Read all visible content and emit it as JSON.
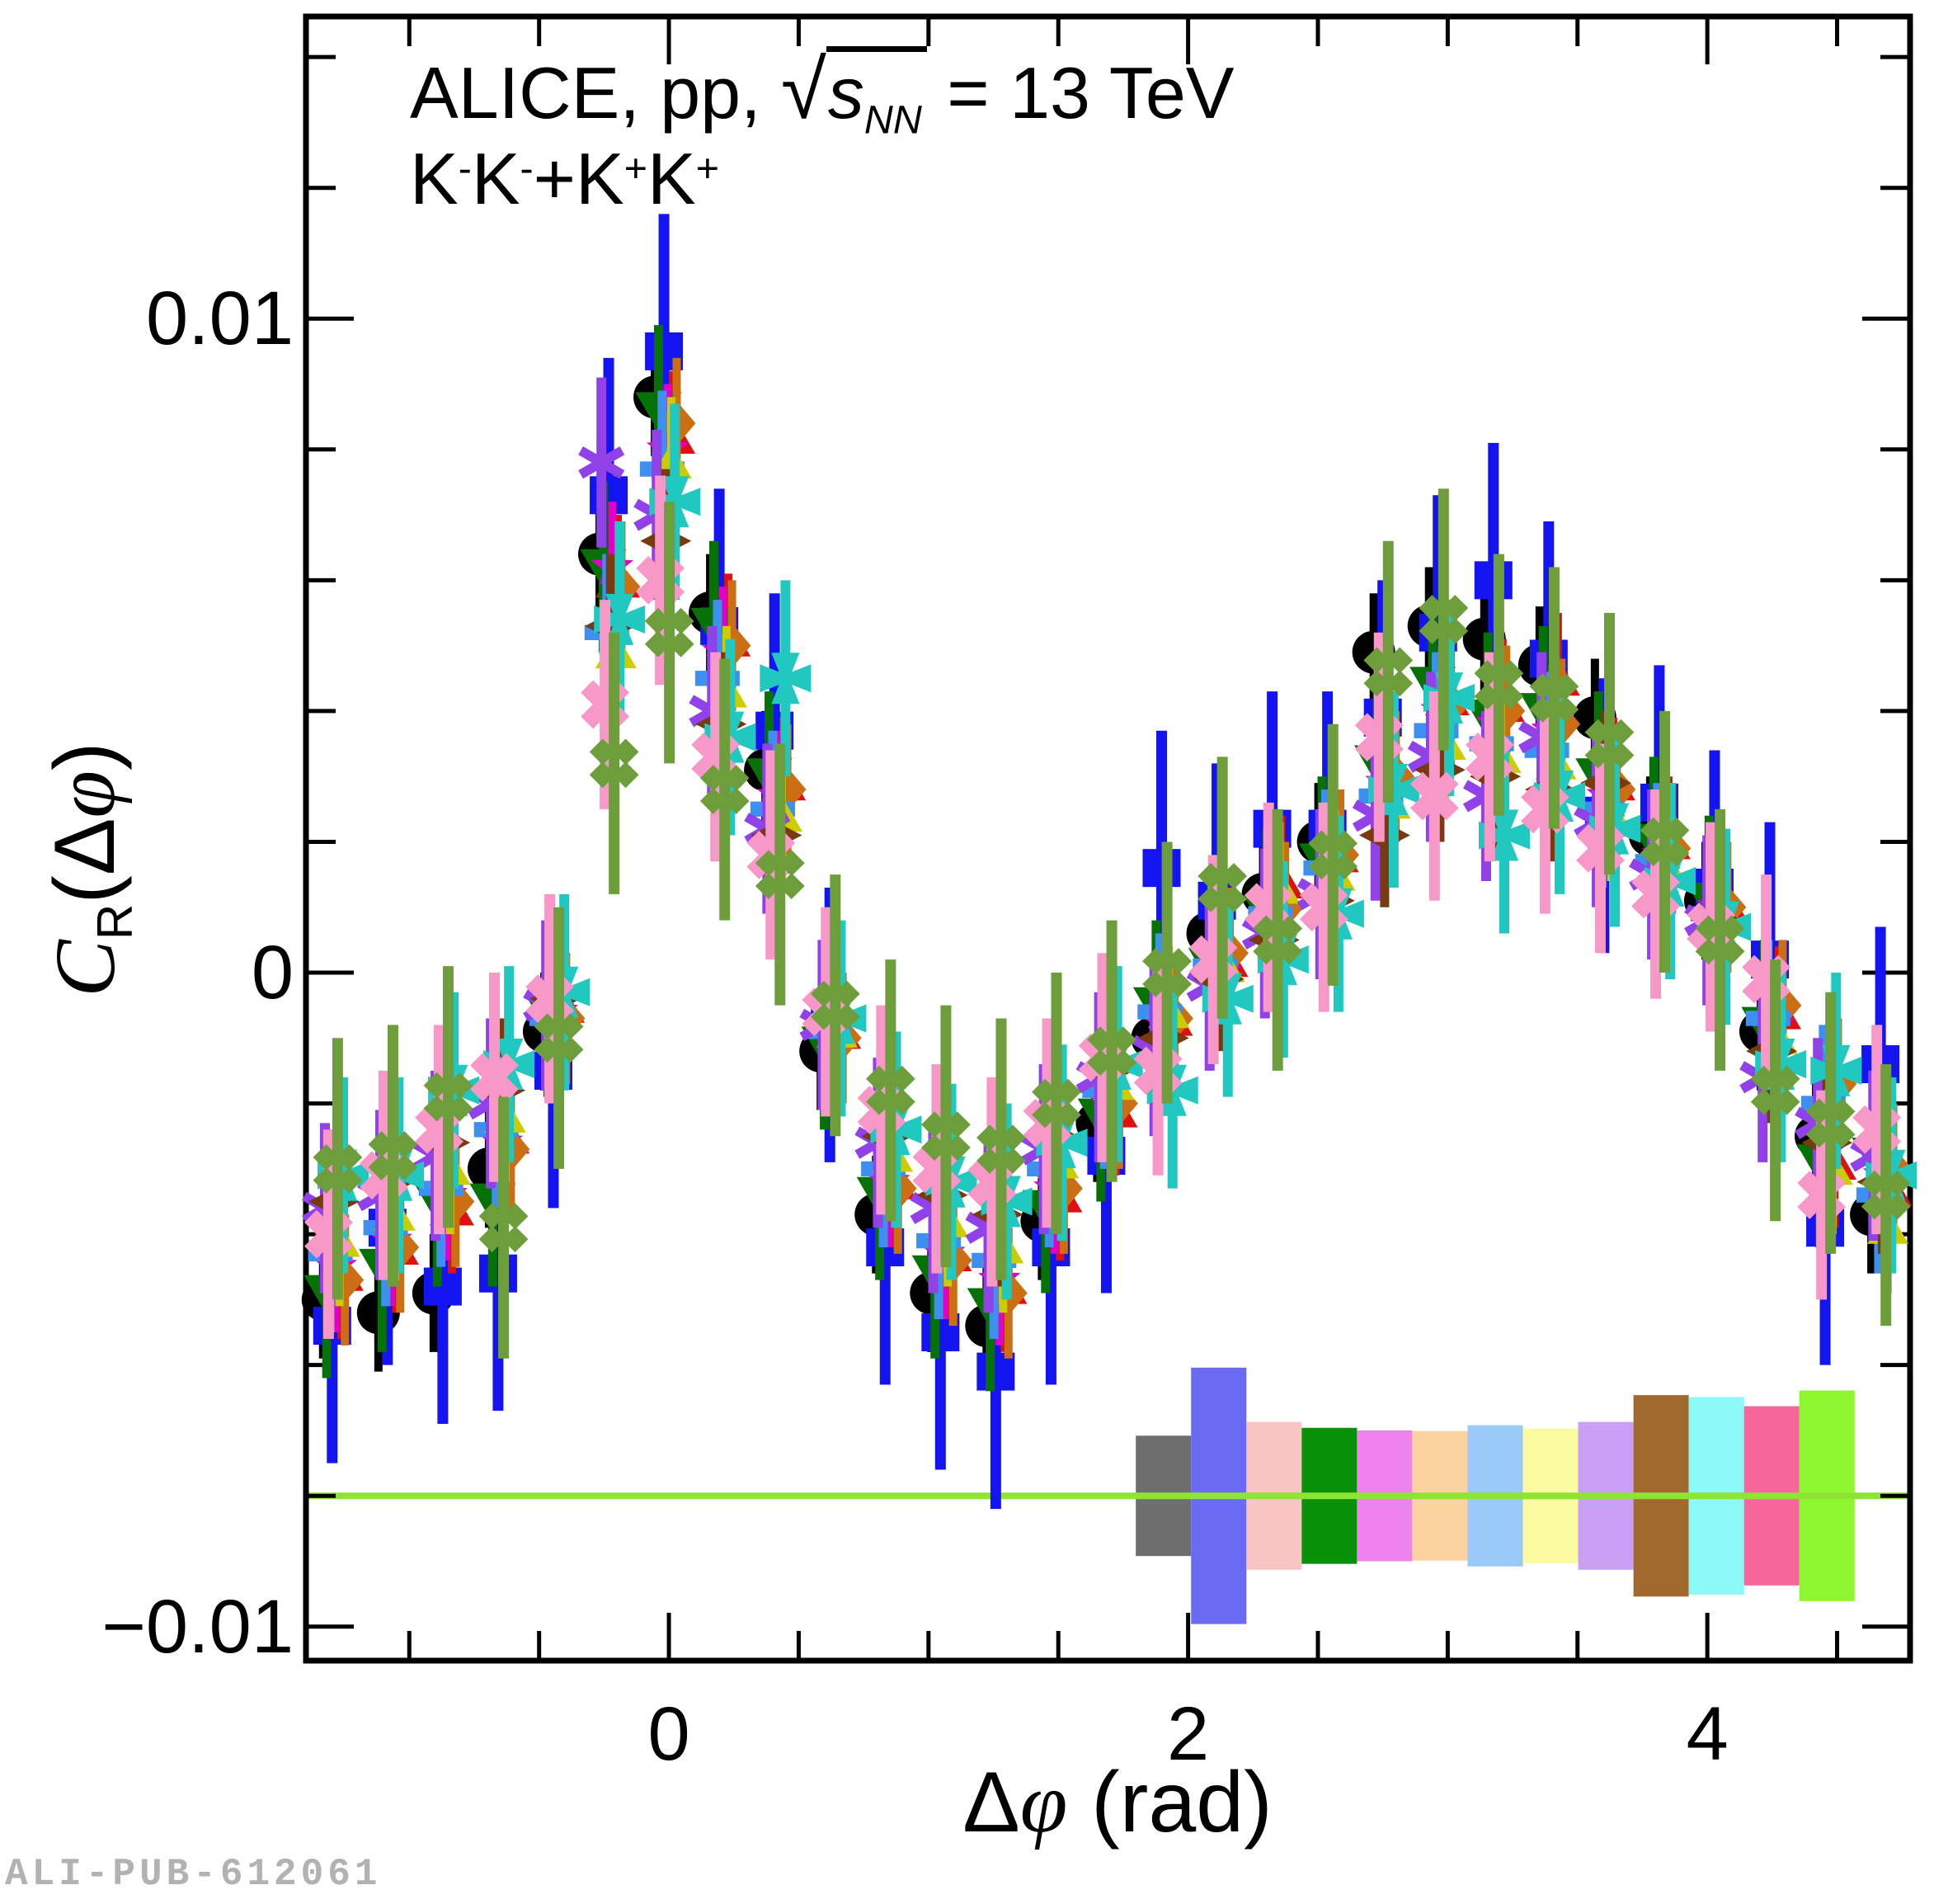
{
  "header": {
    "line1_prefix": "ALICE, pp, ",
    "sqrt_symbol": "√",
    "radicand": "s",
    "radicand_sub": "NN",
    "line1_suffix": " = 13 TeV",
    "system": [
      {
        "t": "K",
        "s": "-"
      },
      {
        "t": "K",
        "s": "-"
      },
      {
        "t": "+"
      },
      {
        "t": "K",
        "s": "+"
      },
      {
        "t": "K",
        "s": "+"
      }
    ]
  },
  "watermark": "ALI-PUB-612061",
  "axes": {
    "x_title_delta": "Δ",
    "x_title_phi": "φ",
    "x_title_suffix": " (rad)",
    "y_title_c": "C",
    "y_title_sub": "R",
    "y_title_open": "(Δ",
    "y_title_phi": "φ",
    "y_title_close": ")"
  },
  "chart_data": {
    "type": "scatter",
    "title": "ALICE, pp, sqrt(s_NN) = 13 TeV ; K-K- + K+K+",
    "xlabel": "Δφ (rad)",
    "ylabel": "C_R(Δφ)",
    "xlim": [
      -1.398,
      4.781
    ],
    "ylim": [
      -0.01052,
      0.01462
    ],
    "grid": false,
    "legend": "none (13 unlabeled kaon-pair series distinguished by marker color; systematic-uncertainty boxes drawn near y = -0.008)",
    "x_ticks": [
      {
        "v": 0,
        "label": "0"
      },
      {
        "v": 2,
        "label": "2"
      },
      {
        "v": 4,
        "label": "4"
      }
    ],
    "x_minor_step": 0.5,
    "y_ticks": [
      {
        "v": 0.01,
        "label": "0.01"
      },
      {
        "v": 0,
        "label": "0"
      },
      {
        "v": -0.01,
        "label": "−0.01"
      }
    ],
    "y_minor_step": 0.002,
    "baseline": {
      "y": -0.008,
      "color": "#8de433"
    },
    "x": [
      -1.29,
      -1.077,
      -0.864,
      -0.651,
      -0.438,
      -0.225,
      -0.012,
      0.201,
      0.414,
      0.627,
      0.84,
      1.053,
      1.266,
      1.479,
      1.692,
      1.905,
      2.118,
      2.331,
      2.544,
      2.757,
      2.97,
      3.183,
      3.396,
      3.609,
      3.822,
      4.035,
      4.248,
      4.461,
      4.674
    ],
    "series": [
      {
        "name": "black-circles",
        "marker": "circle",
        "color": "#000000",
        "size": 26,
        "line_width": 10,
        "err": 0.0009,
        "x_offset": -0.042,
        "y": [
          -0.005,
          -0.0052,
          -0.0049,
          -0.003,
          -0.0009,
          0.0064,
          0.0088,
          0.0055,
          0.0031,
          -0.0012,
          -0.0037,
          -0.0049,
          -0.0054,
          -0.0038,
          -0.0023,
          -0.001,
          0.0006,
          0.0012,
          0.002,
          0.0049,
          0.0053,
          0.0051,
          0.0047,
          0.0039,
          0.0021,
          0.0011,
          -0.0009,
          -0.0025,
          -0.0037
        ],
        "sys_box": {
          "x": 1.905,
          "half_width": 0.1065,
          "half_height": 0.00092,
          "color": "#6e6e6e"
        }
      },
      {
        "name": "blue-squares",
        "marker": "square",
        "color": "#1414f0",
        "size": 23,
        "line_width": 13,
        "err": 0.0021,
        "x_offset": -0.007,
        "y": [
          -0.0054,
          -0.0039,
          -0.0048,
          -0.0046,
          -0.0015,
          0.0073,
          0.0095,
          0.0053,
          0.0037,
          -0.0008,
          -0.0042,
          -0.0055,
          -0.0061,
          -0.0042,
          -0.0028,
          0.0016,
          0.0011,
          0.0022,
          0.0022,
          0.0039,
          0.0052,
          0.006,
          0.0048,
          0.0024,
          0.0026,
          0.0013,
          0.0002,
          -0.0039,
          -0.0014
        ],
        "sys_box": {
          "x": 2.118,
          "half_width": 0.1065,
          "half_height": 0.00196,
          "color": "#6a6af2"
        }
      },
      {
        "name": "red-triangles-up",
        "marker": "triangle-up",
        "color": "#e01010",
        "size": 27,
        "line_width": 10,
        "err": 0.001,
        "x_offset": 0.028,
        "y": [
          -0.0046,
          -0.0042,
          -0.0036,
          -0.0025,
          -0.0005,
          0.006,
          0.0082,
          0.0051,
          0.0029,
          -0.0009,
          -0.0032,
          -0.0043,
          -0.0048,
          -0.0034,
          -0.0021,
          -0.0007,
          0.0002,
          0.0014,
          0.0018,
          0.0031,
          0.0042,
          0.0041,
          0.0045,
          0.0029,
          0.002,
          0.0011,
          -0.0006,
          -0.0029,
          -0.0033
        ],
        "sys_box": {
          "x": 2.331,
          "half_width": 0.1065,
          "half_height": 0.00113,
          "color": "#f8c4c4"
        }
      },
      {
        "name": "darkgreen-triangles-down",
        "marker": "triangle-down",
        "color": "#067106",
        "size": 28,
        "line_width": 11,
        "err": 0.0013,
        "x_offset": -0.028,
        "y": [
          -0.0049,
          -0.0045,
          -0.0035,
          -0.0035,
          -0.0006,
          0.0062,
          0.0086,
          0.0053,
          0.003,
          -0.0011,
          -0.0034,
          -0.0046,
          -0.0051,
          -0.0036,
          -0.0022,
          -0.0005,
          0.0001,
          0.0009,
          0.0017,
          0.0032,
          0.0044,
          0.0039,
          0.004,
          0.003,
          0.002,
          0.0011,
          -0.0008,
          -0.0029,
          -0.0028
        ],
        "sys_box": {
          "x": 2.544,
          "half_width": 0.1065,
          "half_height": 0.00104,
          "color": "#089008"
        }
      },
      {
        "name": "magenta-stars",
        "marker": "star5",
        "color": "#e000c8",
        "size": 27,
        "line_width": 10,
        "err": 0.001,
        "x_offset": 0.007,
        "y": [
          -0.0045,
          -0.0041,
          -0.0034,
          -0.0026,
          -0.0006,
          0.0062,
          0.008,
          0.0049,
          0.0027,
          -0.001,
          -0.0032,
          -0.0043,
          -0.0047,
          -0.0033,
          -0.002,
          -0.0008,
          0.0,
          0.0008,
          0.0016,
          0.0029,
          0.004,
          0.0038,
          0.0037,
          0.0027,
          0.0018,
          0.001,
          -0.0008,
          -0.0027,
          -0.0031
        ],
        "sys_box": {
          "x": 2.757,
          "half_width": 0.1065,
          "half_height": 0.001,
          "color": "#ee82ee"
        }
      },
      {
        "name": "orange-diamonds",
        "marker": "diamond",
        "color": "#cc6e14",
        "size": 27,
        "line_width": 10,
        "err": 0.001,
        "x_offset": 0.042,
        "y": [
          -0.0047,
          -0.0042,
          -0.0035,
          -0.0027,
          -0.0007,
          0.0059,
          0.0084,
          0.005,
          0.0028,
          -0.001,
          -0.0033,
          -0.0044,
          -0.0049,
          -0.0033,
          -0.002,
          -0.0007,
          0.0003,
          0.001,
          0.0018,
          0.003,
          0.0041,
          0.004,
          0.0038,
          0.0028,
          0.0019,
          0.001,
          -0.0005,
          -0.0017,
          -0.003
        ],
        "sys_box": {
          "x": 2.97,
          "half_width": 0.1065,
          "half_height": 0.00099,
          "color": "#fbd2a0"
        }
      },
      {
        "name": "dodgerblue-crosses",
        "marker": "plus",
        "color": "#3d8ff0",
        "size": 27,
        "line_width": 11,
        "err": 0.0012,
        "x_offset": -0.014,
        "y": [
          -0.0043,
          -0.0039,
          -0.0033,
          -0.0024,
          -0.0007,
          0.0052,
          0.0077,
          0.0045,
          0.0025,
          -0.0009,
          -0.003,
          -0.0041,
          -0.0044,
          -0.003,
          -0.0018,
          -0.0006,
          0.0001,
          0.0009,
          0.0016,
          0.0027,
          0.0037,
          0.0035,
          0.0034,
          0.0025,
          0.0017,
          0.0009,
          -0.0007,
          -0.002,
          -0.0034
        ],
        "sys_box": {
          "x": 3.183,
          "half_width": 0.1065,
          "half_height": 0.00108,
          "color": "#9ccaf8"
        }
      },
      {
        "name": "yellow-triangles",
        "marker": "triangle-up",
        "color": "#cccc00",
        "size": 25,
        "line_width": 10,
        "err": 0.001,
        "x_offset": 0.021,
        "y": [
          -0.0041,
          -0.0037,
          -0.003,
          -0.0022,
          -0.0006,
          0.0049,
          0.0078,
          0.0043,
          0.0024,
          -0.0009,
          -0.0028,
          -0.0038,
          -0.0042,
          -0.0029,
          -0.0017,
          -0.0006,
          0.0001,
          0.0013,
          0.0015,
          0.0026,
          0.0035,
          0.0033,
          0.0032,
          0.0024,
          0.0016,
          0.0009,
          -0.001,
          -0.003,
          -0.0039
        ],
        "sys_box": {
          "x": 3.396,
          "half_width": 0.1065,
          "half_height": 0.00103,
          "color": "#fafaa0"
        }
      },
      {
        "name": "purple-asterisks",
        "marker": "asterisk",
        "color": "#9141e8",
        "size": 29,
        "line_width": 12,
        "err": 0.0013,
        "x_offset": -0.035,
        "y": [
          -0.0036,
          -0.0034,
          -0.0028,
          -0.002,
          -0.0005,
          0.0078,
          0.007,
          0.004,
          0.0022,
          -0.0008,
          -0.0026,
          -0.0036,
          -0.0039,
          -0.0027,
          -0.0016,
          -0.0012,
          -0.0002,
          0.0006,
          0.0012,
          0.0024,
          0.0033,
          0.0027,
          0.0036,
          0.0023,
          0.0015,
          0.0008,
          -0.0016,
          -0.0023,
          -0.0028
        ],
        "sys_box": {
          "x": 3.609,
          "half_width": 0.1065,
          "half_height": 0.00113,
          "color": "#c9a0f5"
        }
      },
      {
        "name": "brown-diamonds",
        "marker": "flat-diamond",
        "color": "#7a3a10",
        "size": 31,
        "line_width": 11,
        "err": 0.0011,
        "x_offset": 0.0,
        "y": [
          -0.0035,
          -0.0032,
          -0.0026,
          -0.0018,
          -0.0004,
          0.0053,
          0.0066,
          0.0038,
          0.0021,
          -0.0007,
          -0.0025,
          -0.0034,
          -0.0037,
          -0.0025,
          -0.0015,
          -0.001,
          -0.0001,
          0.0005,
          0.0011,
          0.0021,
          0.0031,
          0.003,
          0.0028,
          0.0029,
          0.0014,
          0.0008,
          -0.0012,
          -0.0026,
          -0.0032
        ],
        "sys_box": {
          "x": 3.822,
          "half_width": 0.1065,
          "half_height": 0.00154,
          "color": "#a2692e"
        }
      },
      {
        "name": "cyan-cross-stars",
        "marker": "cross-star",
        "color": "#20c8c0",
        "size": 31,
        "line_width": 12,
        "err": 0.0015,
        "x_offset": 0.035,
        "y": [
          -0.0031,
          -0.0031,
          -0.0018,
          -0.0014,
          -0.0003,
          0.0054,
          0.0072,
          0.0036,
          0.0045,
          -0.0007,
          -0.0024,
          -0.0032,
          -0.0035,
          -0.0026,
          -0.0014,
          -0.0018,
          -0.0004,
          0.0002,
          0.0009,
          0.0028,
          0.0042,
          0.0021,
          0.0027,
          0.0022,
          0.0014,
          0.0007,
          -0.0014,
          -0.0015,
          -0.0031
        ],
        "sys_box": {
          "x": 4.035,
          "half_width": 0.1065,
          "half_height": 0.00151,
          "color": "#8df8f8"
        }
      },
      {
        "name": "pink-x-crosses",
        "marker": "xcross",
        "color": "#f898c8",
        "size": 31,
        "line_width": 13,
        "err": 0.0016,
        "x_offset": -0.021,
        "y": [
          -0.004,
          -0.0031,
          -0.0024,
          -0.0016,
          -0.0004,
          0.0041,
          0.006,
          0.0033,
          0.0018,
          -0.0006,
          -0.0021,
          -0.003,
          -0.0032,
          -0.0023,
          -0.0013,
          -0.0015,
          0.0002,
          0.001,
          0.001,
          0.0036,
          0.0027,
          0.0033,
          0.0025,
          0.0019,
          0.0012,
          0.0007,
          -0.0001,
          -0.0034,
          -0.0024
        ],
        "sys_box": {
          "x": 4.248,
          "half_width": 0.1065,
          "half_height": 0.00137,
          "color": "#f8679b"
        }
      },
      {
        "name": "olive-clovers",
        "marker": "clover",
        "color": "#6e9e3c",
        "size": 29,
        "line_width": 13,
        "err": 0.002,
        "x_offset": 0.014,
        "y": [
          -0.003,
          -0.0028,
          -0.0019,
          -0.0039,
          -0.001,
          0.0032,
          0.0052,
          0.0028,
          0.0015,
          -0.0005,
          -0.0018,
          -0.0025,
          -0.0027,
          -0.002,
          -0.0012,
          0.0,
          0.0013,
          0.0005,
          0.0018,
          0.0046,
          0.0054,
          0.0044,
          0.0042,
          0.0035,
          0.002,
          0.0005,
          -0.0018,
          -0.0023,
          -0.0034
        ],
        "sys_box": {
          "x": 4.461,
          "half_width": 0.1065,
          "half_height": 0.00161,
          "color": "#8ef62e"
        }
      }
    ]
  }
}
